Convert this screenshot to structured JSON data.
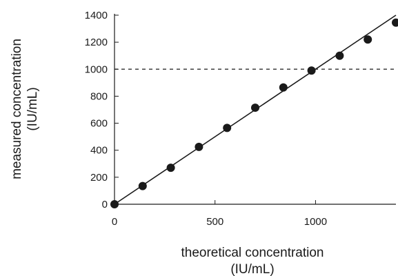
{
  "chart_data": {
    "type": "scatter",
    "xlabel_line1": "theoretical concentration",
    "xlabel_line2": "(IU/mL)",
    "ylabel_line1": "measured concentration",
    "ylabel_line2": "(IU/mL)",
    "xlim": [
      0,
      1400
    ],
    "ylim": [
      0,
      1400
    ],
    "x_ticks": [
      0,
      500,
      1000
    ],
    "y_ticks": [
      0,
      200,
      400,
      600,
      800,
      1000,
      1200,
      1400
    ],
    "grid": false,
    "legend": "none",
    "series": [
      {
        "marker": "filled-circle",
        "points": [
          {
            "x": 0,
            "y": 0
          },
          {
            "x": 140,
            "y": 135
          },
          {
            "x": 280,
            "y": 270
          },
          {
            "x": 420,
            "y": 425
          },
          {
            "x": 560,
            "y": 565
          },
          {
            "x": 700,
            "y": 715
          },
          {
            "x": 840,
            "y": 865
          },
          {
            "x": 980,
            "y": 990
          },
          {
            "x": 1120,
            "y": 1100
          },
          {
            "x": 1260,
            "y": 1220
          },
          {
            "x": 1400,
            "y": 1345
          }
        ]
      }
    ],
    "reference_lines": [
      {
        "kind": "fit-line",
        "style": "solid",
        "from": {
          "x": 0,
          "y": 0
        },
        "to": {
          "x": 1400,
          "y": 1400
        }
      },
      {
        "kind": "horizontal",
        "style": "dashed",
        "y": 1000,
        "from_x": 0,
        "to_x": 1400
      }
    ],
    "colors": {
      "ink": "#1a1a1a",
      "background": "#ffffff"
    }
  }
}
